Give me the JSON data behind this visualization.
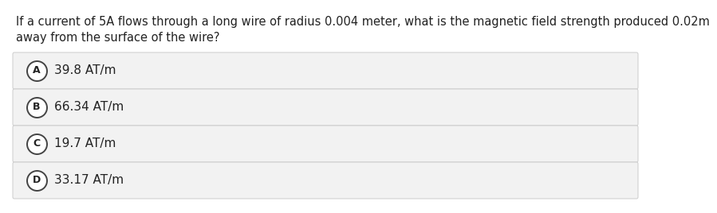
{
  "question_line1": "If a current of 5A flows through a long wire of radius 0.004 meter, what is the magnetic field strength produced 0.02m",
  "question_line2": "away from the surface of the wire?",
  "options": [
    {
      "letter": "A",
      "text": "39.8 AT/m"
    },
    {
      "letter": "B",
      "text": "66.34 AT/m"
    },
    {
      "letter": "C",
      "text": "19.7 AT/m"
    },
    {
      "letter": "D",
      "text": "33.17 AT/m"
    }
  ],
  "bg_color": "#ffffff",
  "option_bg_color": "#f2f2f2",
  "option_border_color": "#cccccc",
  "question_color": "#222222",
  "option_text_color": "#222222",
  "circle_edge_color": "#444444",
  "circle_fill_color": "#ffffff",
  "question_fontsize": 10.5,
  "option_fontsize": 11
}
